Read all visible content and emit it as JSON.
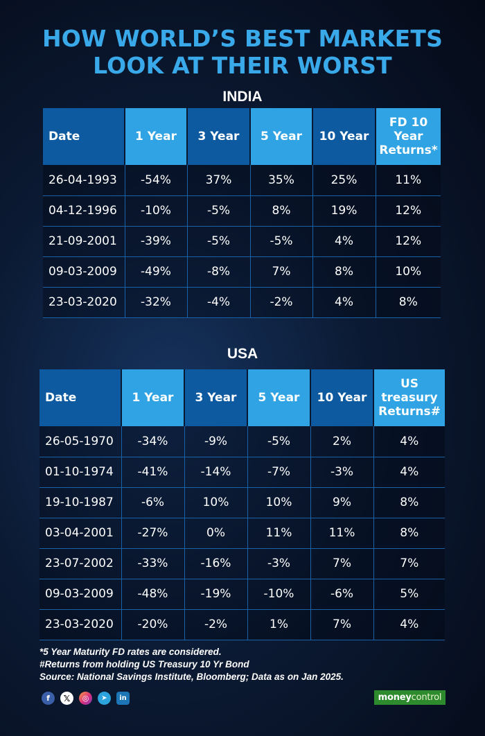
{
  "title": {
    "line1": "HOW WORLD’S BEST MARKETS",
    "line2": "LOOK AT THEIR WORST"
  },
  "india": {
    "heading": "INDIA",
    "headers": [
      "Date",
      "1 Year",
      "3 Year",
      "5 Year",
      "10 Year",
      "FD 10 Year Returns*"
    ],
    "rows": [
      [
        "26-04-1993",
        "-54%",
        "37%",
        "35%",
        "25%",
        "11%"
      ],
      [
        "04-12-1996",
        "-10%",
        "-5%",
        "8%",
        "19%",
        "12%"
      ],
      [
        "21-09-2001",
        "-39%",
        "-5%",
        "-5%",
        "4%",
        "12%"
      ],
      [
        "09-03-2009",
        "-49%",
        "-8%",
        "7%",
        "8%",
        "10%"
      ],
      [
        "23-03-2020",
        "-32%",
        "-4%",
        "-2%",
        "4%",
        "8%"
      ]
    ]
  },
  "usa": {
    "heading": "USA",
    "headers": [
      "Date",
      "1 Year",
      "3 Year",
      "5 Year",
      "10 Year",
      "US treasury Returns#"
    ],
    "rows": [
      [
        "26-05-1970",
        "-34%",
        "-9%",
        "-5%",
        "2%",
        "4%"
      ],
      [
        "01-10-1974",
        "-41%",
        "-14%",
        "-7%",
        "-3%",
        "4%"
      ],
      [
        "19-10-1987",
        "-6%",
        "10%",
        "10%",
        "9%",
        "8%"
      ],
      [
        "03-04-2001",
        "-27%",
        "0%",
        "11%",
        "11%",
        "8%"
      ],
      [
        "23-07-2002",
        "-33%",
        "-16%",
        "-3%",
        "7%",
        "7%"
      ],
      [
        "09-03-2009",
        "-48%",
        "-19%",
        "-10%",
        "-6%",
        "5%"
      ],
      [
        "23-03-2020",
        "-20%",
        "-2%",
        "1%",
        "7%",
        "4%"
      ]
    ]
  },
  "footnotes": [
    "*5 Year Maturity FD rates are considered.",
    "#Returns from holding US Treasury 10 Yr Bond",
    "Source: National Savings Institute, Bloomberg; Data as on Jan 2025."
  ],
  "social": {
    "facebook": "f",
    "x": "𝕏",
    "instagram": "◎",
    "telegram": "➤",
    "linkedin": "in"
  },
  "brand": {
    "part1": "money",
    "part2": "control"
  },
  "colors": {
    "title": "#3aa9ea",
    "header_dark": "#0d5aa0",
    "header_light": "#2fa3e3",
    "brand_green": "#2d8a2d"
  }
}
